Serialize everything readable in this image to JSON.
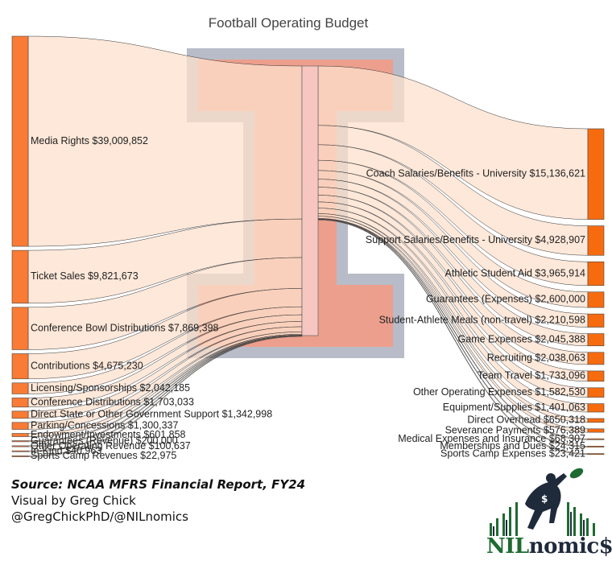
{
  "chart_data": {
    "type": "sankey",
    "title": "Football Operating Budget",
    "sources": [
      {
        "label": "Media Rights $39,009,852",
        "value": 39009852
      },
      {
        "label": "Ticket Sales $9,821,673",
        "value": 9821673
      },
      {
        "label": "Conference Bowl Distributions $7,869,398",
        "value": 7869398
      },
      {
        "label": "Contributions $4,675,230",
        "value": 4675230
      },
      {
        "label": "Licensing/Sponsorships $2,042,185",
        "value": 2042185
      },
      {
        "label": "Conference Distributions $1,703,033",
        "value": 1703033
      },
      {
        "label": "Direct State or Other Government Support $1,342,998",
        "value": 1342998
      },
      {
        "label": "Parking/Concessions $1,300,337",
        "value": 1300337
      },
      {
        "label": "Endowment/Investments $601,858",
        "value": 601858
      },
      {
        "label": "Guarantees (Revenue) $200,000",
        "value": 200000
      },
      {
        "label": "Other Operating Revenue $100,637",
        "value": 100637
      },
      {
        "label": "In-Kind $40,963",
        "value": 40963
      },
      {
        "label": "Sports Camp Revenues $22,975",
        "value": 22975
      }
    ],
    "targets": [
      {
        "label": "Coach Salaries/Benefits - University $15,136,621",
        "value": 15136621
      },
      {
        "label": "Support Salaries/Benefits - University $4,928,907",
        "value": 4928907
      },
      {
        "label": "Athletic Student Aid $3,965,914",
        "value": 3965914
      },
      {
        "label": "Guarantees (Expenses) $2,600,000",
        "value": 2600000
      },
      {
        "label": "Student-Athlete Meals (non-travel) $2,210,598",
        "value": 2210598
      },
      {
        "label": "Game Expenses $2,045,388",
        "value": 2045388
      },
      {
        "label": "Recruiting $2,038,063",
        "value": 2038063
      },
      {
        "label": "Team Travel $1,733,096",
        "value": 1733096
      },
      {
        "label": "Other Operating Expenses $1,582,530",
        "value": 1582530
      },
      {
        "label": "Equipment/Supplies $1,401,063",
        "value": 1401063
      },
      {
        "label": "Direct Overhead $650,318",
        "value": 650318
      },
      {
        "label": "Severance Payments $576,389",
        "value": 576389
      },
      {
        "label": "Medical Expenses and Insurance $68,307",
        "value": 68307
      },
      {
        "label": "Memberships and Dues $24,315",
        "value": 24315
      },
      {
        "label": "Sports Camp Expenses $23,421",
        "value": 23421
      }
    ],
    "colors": {
      "source_node": "#f97b35",
      "target_node": "#f76b0f",
      "hub_node": "#f7c6c0",
      "link": "#fde0cc",
      "block_i_outline": "#b8bcc8",
      "block_i_fill": "#f49a82"
    }
  },
  "credits": {
    "source": "Source: NCAA MFRS Financial Report, FY24",
    "visual_by": "Visual by Greg Chick",
    "handles": "@GregChickPhD/@NILnomics"
  },
  "logo": {
    "text_green": "NIL",
    "text_dark": "nomic$",
    "icon": "football-player-catching-icon"
  }
}
